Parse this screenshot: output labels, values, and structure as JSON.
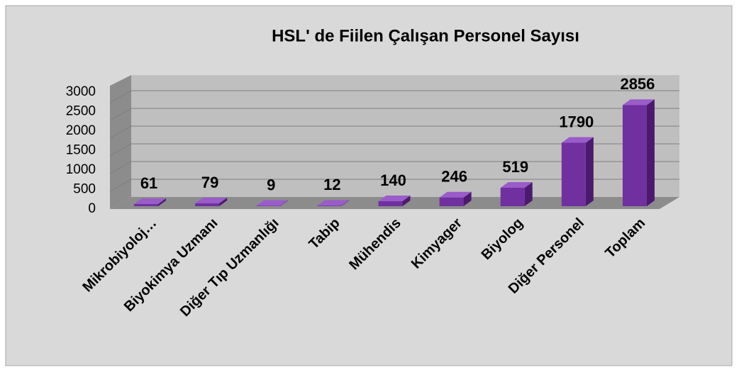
{
  "chart_data": {
    "type": "bar3d",
    "title": "HSL' de Fiilen Çalışan Personel Sayısı",
    "categories": [
      "Mikrobiyoloj…",
      "Biyokimya Uzmanı",
      "Diğer Tıp Uzmanlığı",
      "Tabip",
      "Mühendis",
      "Kimyager",
      "Biyolog",
      "Diğer Personel",
      "Toplam"
    ],
    "values": [
      61,
      79,
      9,
      12,
      140,
      246,
      519,
      1790,
      2856
    ],
    "color": "#7030a0",
    "ylim": [
      0,
      3000
    ],
    "yticks": [
      0,
      500,
      1000,
      1500,
      2000,
      2500,
      3000
    ],
    "grid": true
  }
}
